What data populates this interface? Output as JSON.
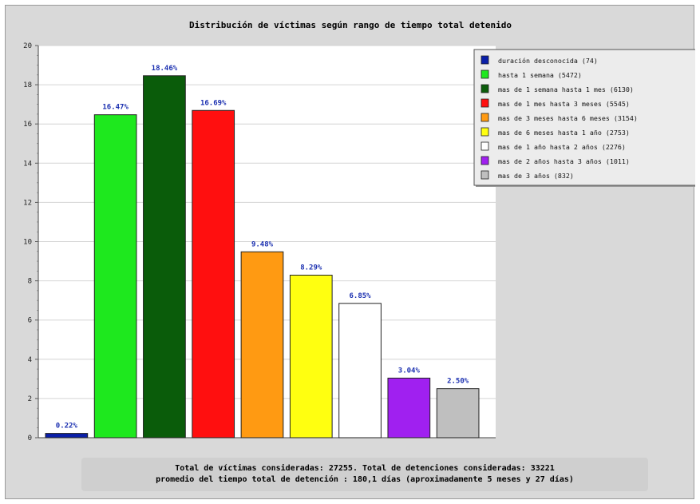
{
  "chart_data": {
    "type": "bar",
    "title": "Distribución de víctimas según rango de tiempo total detenido",
    "ylim": [
      0,
      20
    ],
    "yticks": [
      "0",
      "2",
      "4",
      "6",
      "8",
      "10",
      "12",
      "14",
      "16",
      "18",
      "20"
    ],
    "grid": true,
    "legend_position": "top-right",
    "categories": [
      "duración desconocida (74)",
      "hasta 1 semana (5472)",
      "mas de 1 semana hasta 1 mes (6130)",
      "mas de 1 mes hasta 3 meses (5545)",
      "mas de 3 meses hasta 6 meses (3154)",
      "mas de 6 meses hasta 1 año (2753)",
      "mas de 1 año hasta 2 años (2276)",
      "mas de 2 años hasta 3 años (1011)",
      "mas de 3 años (832)"
    ],
    "values": [
      0.22,
      16.47,
      18.46,
      16.69,
      9.48,
      8.29,
      6.85,
      3.04,
      2.5
    ],
    "data_labels": [
      "0.22%",
      "16.47%",
      "18.46%",
      "16.69%",
      "9.48%",
      "8.29%",
      "6.85%",
      "3.04%",
      "2.50%"
    ],
    "colors": [
      "#0a1fa8",
      "#1ee81e",
      "#0a5c0a",
      "#ff0f0f",
      "#ff9a12",
      "#ffff10",
      "#ffffff",
      "#a020f0",
      "#bfbfbf"
    ]
  },
  "footer": {
    "line1": "Total de víctimas consideradas: 27255. Total de detenciones consideradas: 33221",
    "line2": "promedio del tiempo total de detención : 180,1 días (aproximadamente 5 meses y 27 días)"
  },
  "theme": {
    "background": "#d9d9d9",
    "plot_background": "#ffffff",
    "label_color": "#1a2fb0"
  }
}
